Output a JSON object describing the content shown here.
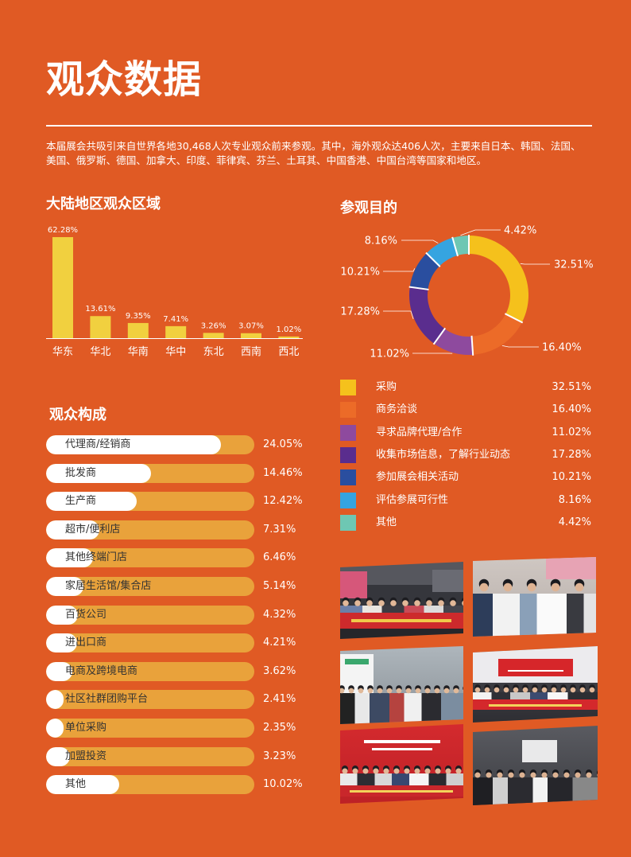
{
  "page": {
    "title": "观众数据",
    "intro": "本届展会共吸引来自世界各地30,468人次专业观众前来参观。其中，海外观众达406人次，主要来自日本、韩国、法国、美国、俄罗斯、德国、加拿大、印度、菲律宾、芬兰、土耳其、中国香港、中国台湾等国家和地区。"
  },
  "colors": {
    "background": "#E05A24",
    "region_bar": "#F1D03F",
    "composition_track": "#E9A23B",
    "composition_fill": "#FFFFFF"
  },
  "chart_data": [
    {
      "type": "bar",
      "title": "大陆地区观众区域",
      "categories": [
        "华东",
        "华北",
        "华南",
        "华中",
        "东北",
        "西南",
        "西北"
      ],
      "values": [
        62.28,
        13.61,
        9.35,
        7.41,
        3.26,
        3.07,
        1.02
      ],
      "value_suffix": "%",
      "xlabel": "",
      "ylabel": "",
      "grid": false
    },
    {
      "type": "pie",
      "style": "donut",
      "title": "参观目的",
      "categories": [
        "采购",
        "商务洽谈",
        "寻求品牌代理/合作",
        "收集市场信息，了解行业动态",
        "参加展会相关活动",
        "评估参展可行性",
        "其他"
      ],
      "values": [
        32.51,
        16.4,
        11.02,
        17.28,
        10.21,
        8.16,
        4.42
      ],
      "colors": [
        "#F5C11C",
        "#EC6B28",
        "#8E4A9E",
        "#5A2D8E",
        "#2A4E9F",
        "#35A4E0",
        "#6EC7B3"
      ],
      "value_suffix": "%",
      "legend": "below"
    },
    {
      "type": "bar",
      "orientation": "horizontal",
      "title": "观众构成",
      "categories": [
        "代理商/经销商",
        "批发商",
        "生产商",
        "超市/便利店",
        "其他终端门店",
        "家居生活馆/集合店",
        "百货公司",
        "进出口商",
        "电商及跨境电商",
        "社区社群团购平台",
        "单位采购",
        "加盟投资",
        "其他"
      ],
      "values": [
        24.05,
        14.46,
        12.42,
        7.31,
        6.46,
        5.14,
        4.32,
        4.21,
        3.62,
        2.41,
        2.35,
        3.23,
        10.02
      ],
      "value_suffix": "%",
      "grid": false
    }
  ]
}
